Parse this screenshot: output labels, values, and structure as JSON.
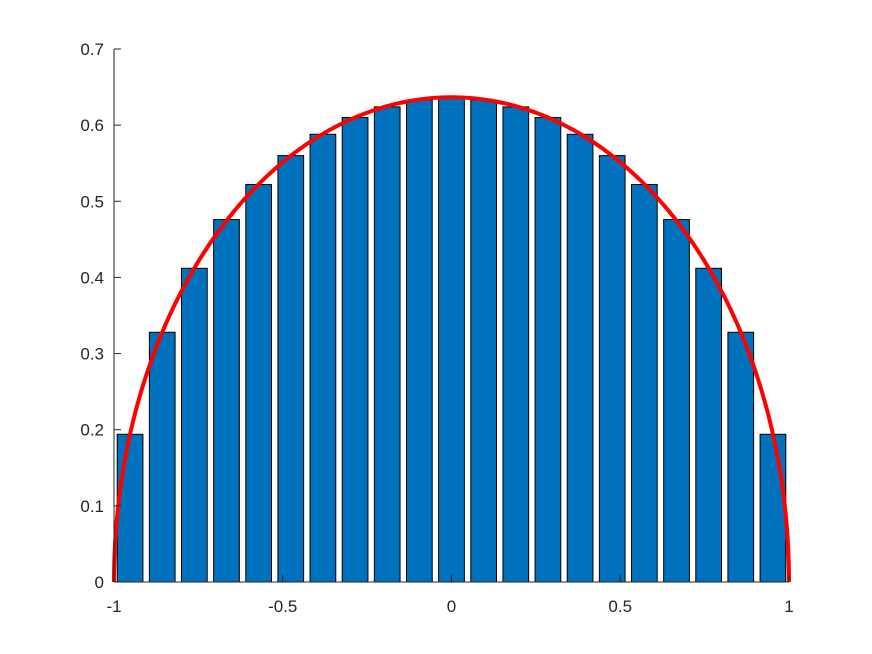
{
  "chart_data": {
    "type": "bar",
    "title": "",
    "xlabel": "",
    "ylabel": "",
    "xlim": [
      -1,
      1
    ],
    "ylim": [
      0,
      0.7
    ],
    "grid": false,
    "x_ticks": [
      -1,
      -0.5,
      0,
      0.5,
      1
    ],
    "x_tick_labels": [
      "-1",
      "-0.5",
      "0",
      "0.5",
      "1"
    ],
    "y_ticks": [
      0,
      0.1,
      0.2,
      0.3,
      0.4,
      0.5,
      0.6,
      0.7
    ],
    "y_tick_labels": [
      "0",
      "0.1",
      "0.2",
      "0.3",
      "0.4",
      "0.5",
      "0.6",
      "0.7"
    ],
    "series": [
      {
        "type": "bar",
        "color": "#0072bd",
        "bar_width": 0.0762,
        "x": [
          -0.9524,
          -0.8571,
          -0.7619,
          -0.6667,
          -0.5714,
          -0.4762,
          -0.381,
          -0.2857,
          -0.1905,
          -0.0952,
          0.0,
          0.0952,
          0.1905,
          0.2857,
          0.381,
          0.4762,
          0.5714,
          0.6667,
          0.7619,
          0.8571,
          0.9524
        ],
        "values": [
          0.194,
          0.328,
          0.412,
          0.476,
          0.522,
          0.56,
          0.588,
          0.61,
          0.624,
          0.633,
          0.636,
          0.633,
          0.624,
          0.61,
          0.588,
          0.56,
          0.522,
          0.476,
          0.412,
          0.328,
          0.194
        ]
      },
      {
        "type": "line",
        "color": "#ff0000",
        "function": "y = (2/pi) * sqrt(1 - x^2)",
        "x_start": -1,
        "x_end": 1,
        "peak": 0.6366
      }
    ]
  }
}
